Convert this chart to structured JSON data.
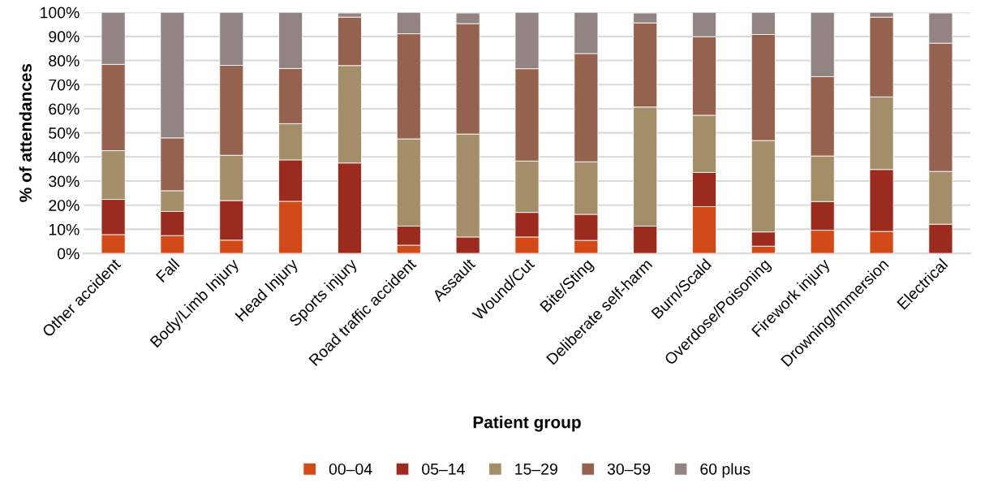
{
  "chart_data": {
    "type": "bar",
    "stacked": true,
    "xlabel": "Patient group",
    "ylabel": "% of attendances",
    "categories": [
      "Other accident",
      "Fall",
      "Body/Limb Injury",
      "Head Injury",
      "Sports injury",
      "Road traffic accident",
      "Assault",
      "Wound/Cut",
      "Bite/Sting",
      "Deliberate self-harm",
      "Burn/Scald",
      "Overdose/Poisoning",
      "Firework injury",
      "Drowning/Immersion",
      "Electrical"
    ],
    "series": [
      {
        "name": "00–04",
        "color": "#d24a17",
        "values": [
          7.8,
          7.4,
          5.5,
          21.6,
          null,
          3.4,
          null,
          6.8,
          5.4,
          null,
          19.4,
          3.0,
          9.6,
          9.1,
          null
        ]
      },
      {
        "name": "05–14",
        "color": "#9c2b1f",
        "values": [
          14.6,
          10.0,
          16.4,
          17.2,
          37.5,
          7.9,
          6.8,
          10.2,
          10.8,
          11.3,
          14.2,
          5.9,
          11.9,
          25.7,
          12.1
        ]
      },
      {
        "name": "15–29",
        "color": "#a48e6a",
        "values": [
          20.2,
          8.6,
          18.8,
          15.0,
          40.4,
          36.2,
          42.7,
          21.3,
          21.8,
          49.4,
          23.7,
          37.9,
          18.9,
          30.1,
          21.9
        ]
      },
      {
        "name": "30–59",
        "color": "#956250",
        "values": [
          35.8,
          21.9,
          37.3,
          22.9,
          20.1,
          43.6,
          45.8,
          38.3,
          44.9,
          34.9,
          32.6,
          44.0,
          32.9,
          33.1,
          53.2
        ]
      },
      {
        "name": "60 plus",
        "color": "#918482",
        "values": [
          21.6,
          52.1,
          22.0,
          23.3,
          1.7,
          8.9,
          4.4,
          23.4,
          17.1,
          4.1,
          10.1,
          9.2,
          26.7,
          2.0,
          12.5
        ]
      }
    ],
    "ylim": [
      0,
      100
    ],
    "yticks": [
      {
        "value": 0,
        "label": "0%"
      },
      {
        "value": 10,
        "label": "10%"
      },
      {
        "value": 20,
        "label": "20%"
      },
      {
        "value": 30,
        "label": "30%"
      },
      {
        "value": 40,
        "label": "40%"
      },
      {
        "value": 50,
        "label": "50%"
      },
      {
        "value": 60,
        "label": "60%"
      },
      {
        "value": 70,
        "label": "70%"
      },
      {
        "value": 80,
        "label": "80%"
      },
      {
        "value": 90,
        "label": "90%"
      },
      {
        "value": 100,
        "label": "100%"
      }
    ],
    "grid": "y",
    "legend": "bottom"
  }
}
